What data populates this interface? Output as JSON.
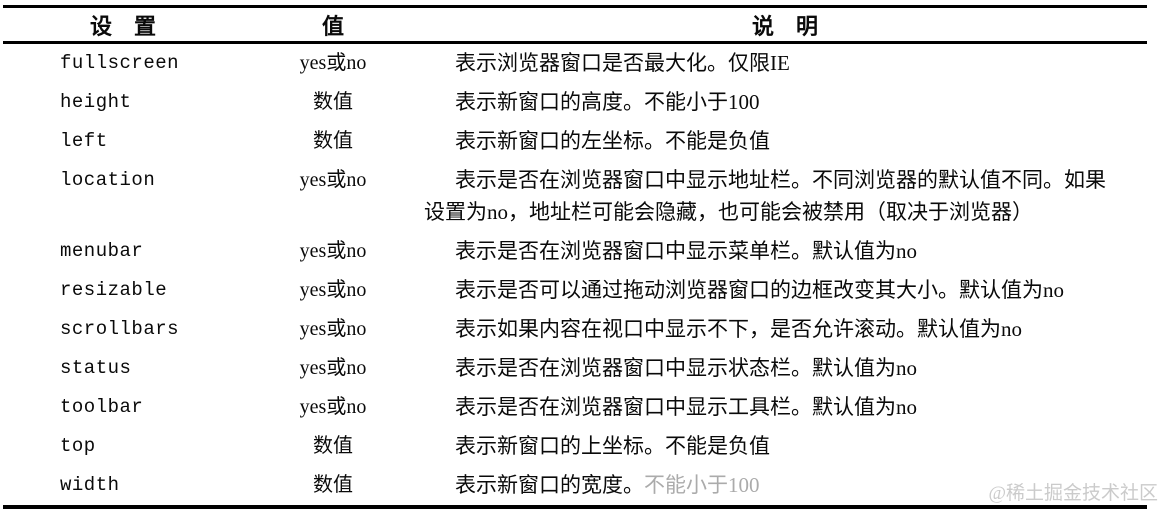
{
  "table": {
    "headers": {
      "setting": "设　置",
      "value": "值",
      "description": "说　明"
    },
    "rows": [
      {
        "setting": "fullscreen",
        "value": "yes或no",
        "description": "表示浏览器窗口是否最大化。仅限IE"
      },
      {
        "setting": "height",
        "value": "数值",
        "description": "表示新窗口的高度。不能小于100"
      },
      {
        "setting": "left",
        "value": "数值",
        "description": "表示新窗口的左坐标。不能是负值"
      },
      {
        "setting": "location",
        "value": "yes或no",
        "description": "表示是否在浏览器窗口中显示地址栏。不同浏览器的默认值不同。如果设置为no，地址栏可能会隐藏，也可能会被禁用（取决于浏览器）"
      },
      {
        "setting": "menubar",
        "value": "yes或no",
        "description": "表示是否在浏览器窗口中显示菜单栏。默认值为no"
      },
      {
        "setting": "resizable",
        "value": "yes或no",
        "description": "表示是否可以通过拖动浏览器窗口的边框改变其大小。默认值为no"
      },
      {
        "setting": "scrollbars",
        "value": "yes或no",
        "description": "表示如果内容在视口中显示不下，是否允许滚动。默认值为no"
      },
      {
        "setting": "status",
        "value": "yes或no",
        "description": "表示是否在浏览器窗口中显示状态栏。默认值为no"
      },
      {
        "setting": "toolbar",
        "value": "yes或no",
        "description": "表示是否在浏览器窗口中显示工具栏。默认值为no"
      },
      {
        "setting": "top",
        "value": "数值",
        "description": "表示新窗口的上坐标。不能是负值"
      },
      {
        "setting": "width",
        "value": "数值",
        "description": "表示新窗口的宽度。",
        "description_faded": "不能小于100"
      }
    ]
  },
  "watermark": "@稀土掘金技术社区",
  "colors": {
    "rule": "#000000",
    "text": "#0a0a0a",
    "faded_text": "#8f8f8f",
    "watermark": "#cbcbcb",
    "background": "#ffffff"
  }
}
